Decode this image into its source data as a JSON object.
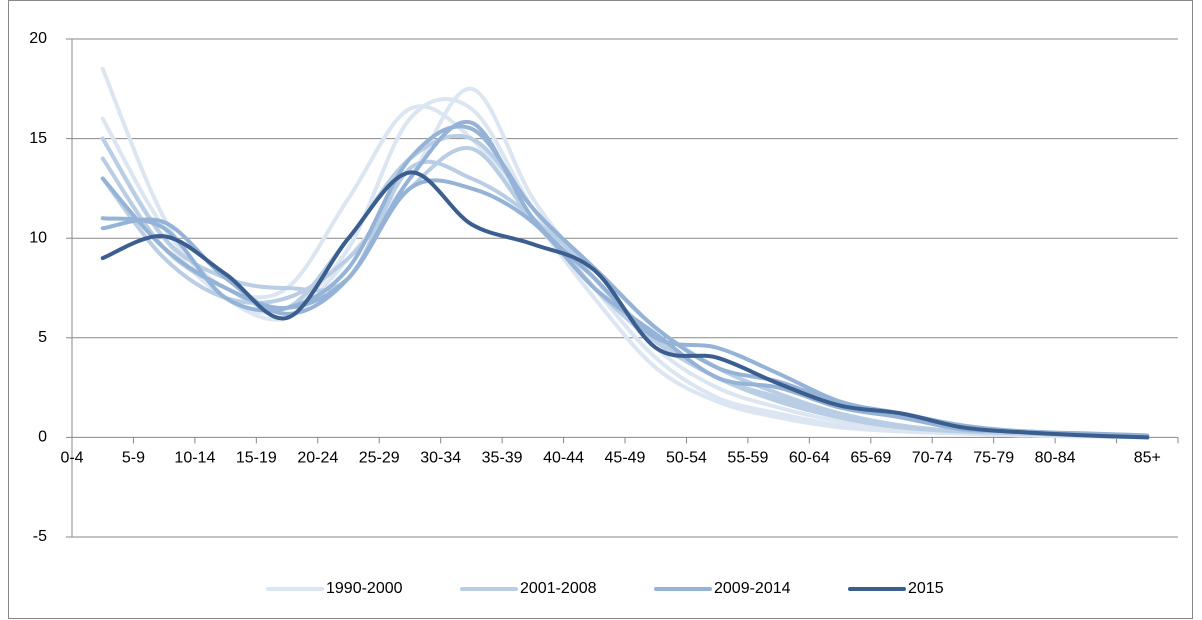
{
  "chart_data": {
    "type": "line",
    "categories": [
      "0-4",
      "5-9",
      "10-14",
      "15-19",
      "20-24",
      "25-29",
      "30-34",
      "35-39",
      "40-44",
      "45-49",
      "50-54",
      "55-59",
      "60-64",
      "65-69",
      "70-74",
      "75-79",
      "80-84",
      "85+"
    ],
    "ylim": [
      -5,
      20
    ],
    "yticks": [
      -5,
      0,
      5,
      10,
      15,
      20
    ],
    "grid": true,
    "legend": "bottom",
    "series": [
      {
        "name": "1990-2000",
        "color": "#dce6f2",
        "values": [
          18.5,
          11,
          7,
          6.5,
          9.5,
          16,
          16.5,
          11.5,
          7.5,
          4,
          2,
          1.2,
          0.6,
          0.3,
          0.2,
          0.1,
          0.05,
          0
        ]
      },
      {
        "color": "#dce6f2",
        "values": [
          16,
          10.5,
          7.5,
          7.5,
          12,
          16.5,
          15,
          11,
          7,
          3.5,
          1.8,
          1,
          0.5,
          0.3,
          0.2,
          0.1,
          0.05,
          0
        ]
      },
      {
        "color": "#dce6f2",
        "values": [
          15,
          10,
          7,
          6,
          9,
          13,
          17.5,
          12,
          8,
          4.5,
          2.5,
          1.5,
          0.8,
          0.4,
          0.2,
          0.1,
          0.05,
          0
        ]
      },
      {
        "name": "2001-2008",
        "color": "#b9cde5",
        "values": [
          14,
          9.5,
          7.5,
          6.5,
          10,
          14,
          15,
          11.5,
          8,
          5,
          3,
          2,
          1,
          0.5,
          0.3,
          0.2,
          0.1,
          0
        ]
      },
      {
        "color": "#b9cde5",
        "values": [
          13,
          9,
          7,
          7,
          9,
          12.5,
          14.5,
          11,
          8.5,
          5.5,
          3.5,
          2.2,
          1.2,
          0.6,
          0.3,
          0.2,
          0.1,
          0.05
        ]
      },
      {
        "color": "#b9cde5",
        "values": [
          15,
          10,
          8,
          7.5,
          8,
          13.5,
          13,
          11,
          7.5,
          4.8,
          3,
          1.8,
          1,
          0.5,
          0.3,
          0.2,
          0.1,
          0
        ]
      },
      {
        "name": "2009-2014",
        "color": "#95b3d7",
        "values": [
          11,
          10.5,
          7,
          6.5,
          8.5,
          14,
          15.5,
          11.5,
          8.5,
          5.5,
          3.5,
          2.8,
          1.7,
          1,
          0.5,
          0.3,
          0.15,
          0.05
        ]
      },
      {
        "color": "#95b3d7",
        "values": [
          10.5,
          10.8,
          8,
          6.2,
          8,
          13,
          15.8,
          11,
          8,
          5,
          4.5,
          3.2,
          1.8,
          1.2,
          0.6,
          0.3,
          0.2,
          0.1
        ]
      },
      {
        "color": "#95b3d7",
        "values": [
          13,
          9.5,
          7.5,
          6.5,
          8,
          12.5,
          12.5,
          10.8,
          7.5,
          5.2,
          3,
          2.5,
          1.5,
          1,
          0.4,
          0.3,
          0.15,
          0.05
        ]
      },
      {
        "name": "2015",
        "color": "#3b5e8f",
        "values": [
          9,
          10.1,
          8.2,
          6,
          10,
          13.3,
          10.7,
          9.7,
          8.4,
          4.5,
          4,
          2.7,
          1.6,
          1.2,
          0.5,
          0.25,
          0.1,
          0
        ]
      }
    ]
  }
}
